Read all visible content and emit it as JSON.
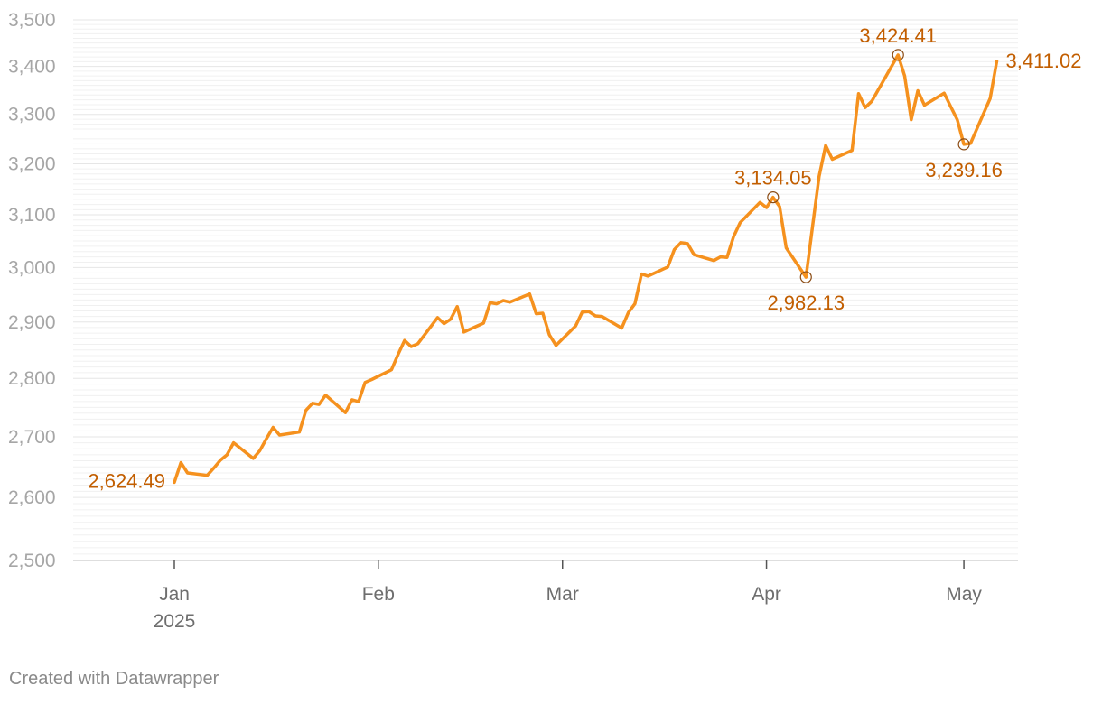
{
  "chart_data": {
    "type": "line",
    "title": "",
    "xlabel": "",
    "ylabel": "",
    "ylim": [
      2500,
      3500
    ],
    "y_scale": "log",
    "grid": "horizontal",
    "y_ticks": [
      2500,
      2600,
      2700,
      2800,
      2900,
      3000,
      3100,
      3200,
      3300,
      3400,
      3500
    ],
    "y_tick_labels": [
      "2,500",
      "2,600",
      "2,700",
      "2,800",
      "2,900",
      "3,000",
      "3,100",
      "3,200",
      "3,300",
      "3,400",
      "3,500"
    ],
    "x_ticks": [
      {
        "date": "2025-01-01",
        "label": "Jan",
        "sublabel": "2025"
      },
      {
        "date": "2025-02-01",
        "label": "Feb",
        "sublabel": ""
      },
      {
        "date": "2025-03-01",
        "label": "Mar",
        "sublabel": ""
      },
      {
        "date": "2025-04-01",
        "label": "Apr",
        "sublabel": ""
      },
      {
        "date": "2025-05-01",
        "label": "May",
        "sublabel": ""
      }
    ],
    "series": [
      {
        "color": "#f5911e",
        "points": [
          [
            "2025-01-01",
            2624.49
          ],
          [
            "2025-01-02",
            2657
          ],
          [
            "2025-01-03",
            2640
          ],
          [
            "2025-01-06",
            2636
          ],
          [
            "2025-01-07",
            2648
          ],
          [
            "2025-01-08",
            2661
          ],
          [
            "2025-01-09",
            2670
          ],
          [
            "2025-01-10",
            2690
          ],
          [
            "2025-01-13",
            2664
          ],
          [
            "2025-01-14",
            2677
          ],
          [
            "2025-01-15",
            2697
          ],
          [
            "2025-01-16",
            2716
          ],
          [
            "2025-01-17",
            2703
          ],
          [
            "2025-01-20",
            2708
          ],
          [
            "2025-01-21",
            2745
          ],
          [
            "2025-01-22",
            2757
          ],
          [
            "2025-01-23",
            2755
          ],
          [
            "2025-01-24",
            2771
          ],
          [
            "2025-01-27",
            2741
          ],
          [
            "2025-01-28",
            2763
          ],
          [
            "2025-01-29",
            2760
          ],
          [
            "2025-01-30",
            2793
          ],
          [
            "2025-01-31",
            2798
          ],
          [
            "2025-02-03",
            2815
          ],
          [
            "2025-02-04",
            2842
          ],
          [
            "2025-02-05",
            2867
          ],
          [
            "2025-02-06",
            2856
          ],
          [
            "2025-02-07",
            2861
          ],
          [
            "2025-02-10",
            2908
          ],
          [
            "2025-02-11",
            2897
          ],
          [
            "2025-02-12",
            2905
          ],
          [
            "2025-02-13",
            2928
          ],
          [
            "2025-02-14",
            2882
          ],
          [
            "2025-02-17",
            2898
          ],
          [
            "2025-02-18",
            2935
          ],
          [
            "2025-02-19",
            2933
          ],
          [
            "2025-02-20",
            2939
          ],
          [
            "2025-02-21",
            2936
          ],
          [
            "2025-02-24",
            2951
          ],
          [
            "2025-02-25",
            2915
          ],
          [
            "2025-02-26",
            2916
          ],
          [
            "2025-02-27",
            2877
          ],
          [
            "2025-02-28",
            2858
          ],
          [
            "2025-03-03",
            2893
          ],
          [
            "2025-03-04",
            2918
          ],
          [
            "2025-03-05",
            2919
          ],
          [
            "2025-03-06",
            2911
          ],
          [
            "2025-03-07",
            2910
          ],
          [
            "2025-03-10",
            2889
          ],
          [
            "2025-03-11",
            2917
          ],
          [
            "2025-03-12",
            2933
          ],
          [
            "2025-03-13",
            2988
          ],
          [
            "2025-03-14",
            2984
          ],
          [
            "2025-03-17",
            3001
          ],
          [
            "2025-03-18",
            3034
          ],
          [
            "2025-03-19",
            3047
          ],
          [
            "2025-03-20",
            3045
          ],
          [
            "2025-03-21",
            3024
          ],
          [
            "2025-03-24",
            3013
          ],
          [
            "2025-03-25",
            3020
          ],
          [
            "2025-03-26",
            3019
          ],
          [
            "2025-03-27",
            3058
          ],
          [
            "2025-03-28",
            3085
          ],
          [
            "2025-03-31",
            3124
          ],
          [
            "2025-04-01",
            3114
          ],
          [
            "2025-04-02",
            3134.05
          ],
          [
            "2025-04-03",
            3116
          ],
          [
            "2025-04-04",
            3037
          ],
          [
            "2025-04-07",
            2982.13
          ],
          [
            "2025-04-08",
            3077
          ],
          [
            "2025-04-09",
            3175
          ],
          [
            "2025-04-10",
            3237
          ],
          [
            "2025-04-11",
            3209
          ],
          [
            "2025-04-14",
            3227
          ],
          [
            "2025-04-15",
            3343
          ],
          [
            "2025-04-16",
            3314
          ],
          [
            "2025-04-17",
            3327
          ],
          [
            "2025-04-21",
            3424.41
          ],
          [
            "2025-04-22",
            3380
          ],
          [
            "2025-04-23",
            3289
          ],
          [
            "2025-04-24",
            3349
          ],
          [
            "2025-04-25",
            3319
          ],
          [
            "2025-04-28",
            3344
          ],
          [
            "2025-04-29",
            3316
          ],
          [
            "2025-04-30",
            3289
          ],
          [
            "2025-05-01",
            3239.16
          ],
          [
            "2025-05-02",
            3241
          ],
          [
            "2025-05-05",
            3333
          ],
          [
            "2025-05-06",
            3411.02
          ]
        ]
      }
    ],
    "highlights": [
      {
        "date": "2025-01-01",
        "value": 2624.49,
        "label": "2,624.49",
        "circle": false,
        "position": "left"
      },
      {
        "date": "2025-04-02",
        "value": 3134.05,
        "label": "3,134.05",
        "circle": true,
        "position": "above"
      },
      {
        "date": "2025-04-07",
        "value": 2982.13,
        "label": "2,982.13",
        "circle": true,
        "position": "below"
      },
      {
        "date": "2025-04-21",
        "value": 3424.41,
        "label": "3,424.41",
        "circle": true,
        "position": "above"
      },
      {
        "date": "2025-05-01",
        "value": 3239.16,
        "label": "3,239.16",
        "circle": true,
        "position": "below"
      },
      {
        "date": "2025-05-06",
        "value": 3411.02,
        "label": "3,411.02",
        "circle": false,
        "position": "right"
      }
    ],
    "colors": {
      "line": "#f5911e",
      "label": "#c25e00",
      "grid": "#e6e6e6",
      "minor_grid": "#f0f0f0",
      "axis": "#bdbdbd"
    }
  },
  "footer": {
    "credit": "Created with Datawrapper"
  }
}
